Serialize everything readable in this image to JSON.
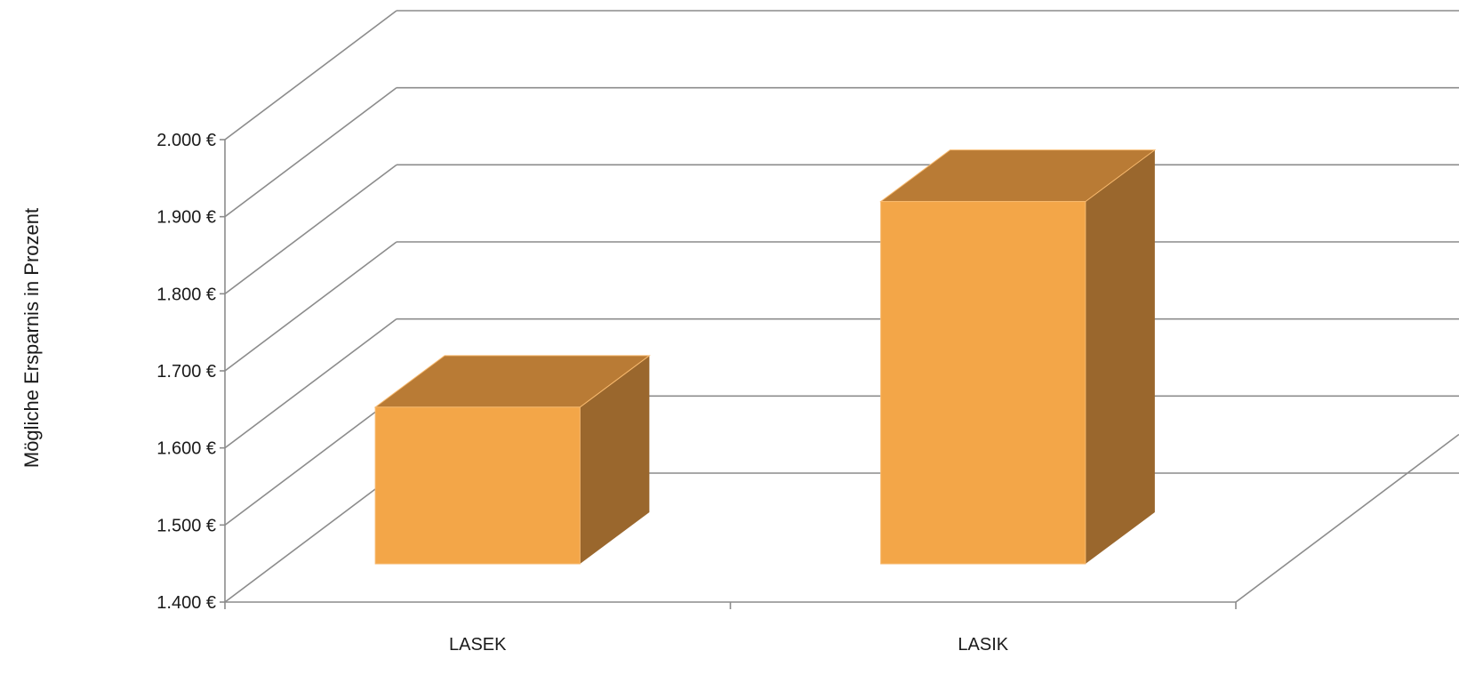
{
  "chart_data": {
    "type": "bar",
    "three_d": true,
    "categories": [
      "LASEK",
      "LASIK"
    ],
    "values": [
      1640,
      1955
    ],
    "ylabel": "Mögliche Ersparnis in Prozent",
    "yticks": [
      "1.400 €",
      "1.500 €",
      "1.600 €",
      "1.700 €",
      "1.800 €",
      "1.900 €",
      "2.000 €"
    ],
    "ylim": [
      1400,
      2000
    ],
    "grid": true,
    "legend": "none",
    "colors": {
      "front": "#f3a648",
      "top": "#b97b35",
      "side": "#9a672d",
      "edge": "#f7b96e",
      "grid": "#8c8c8c"
    }
  }
}
